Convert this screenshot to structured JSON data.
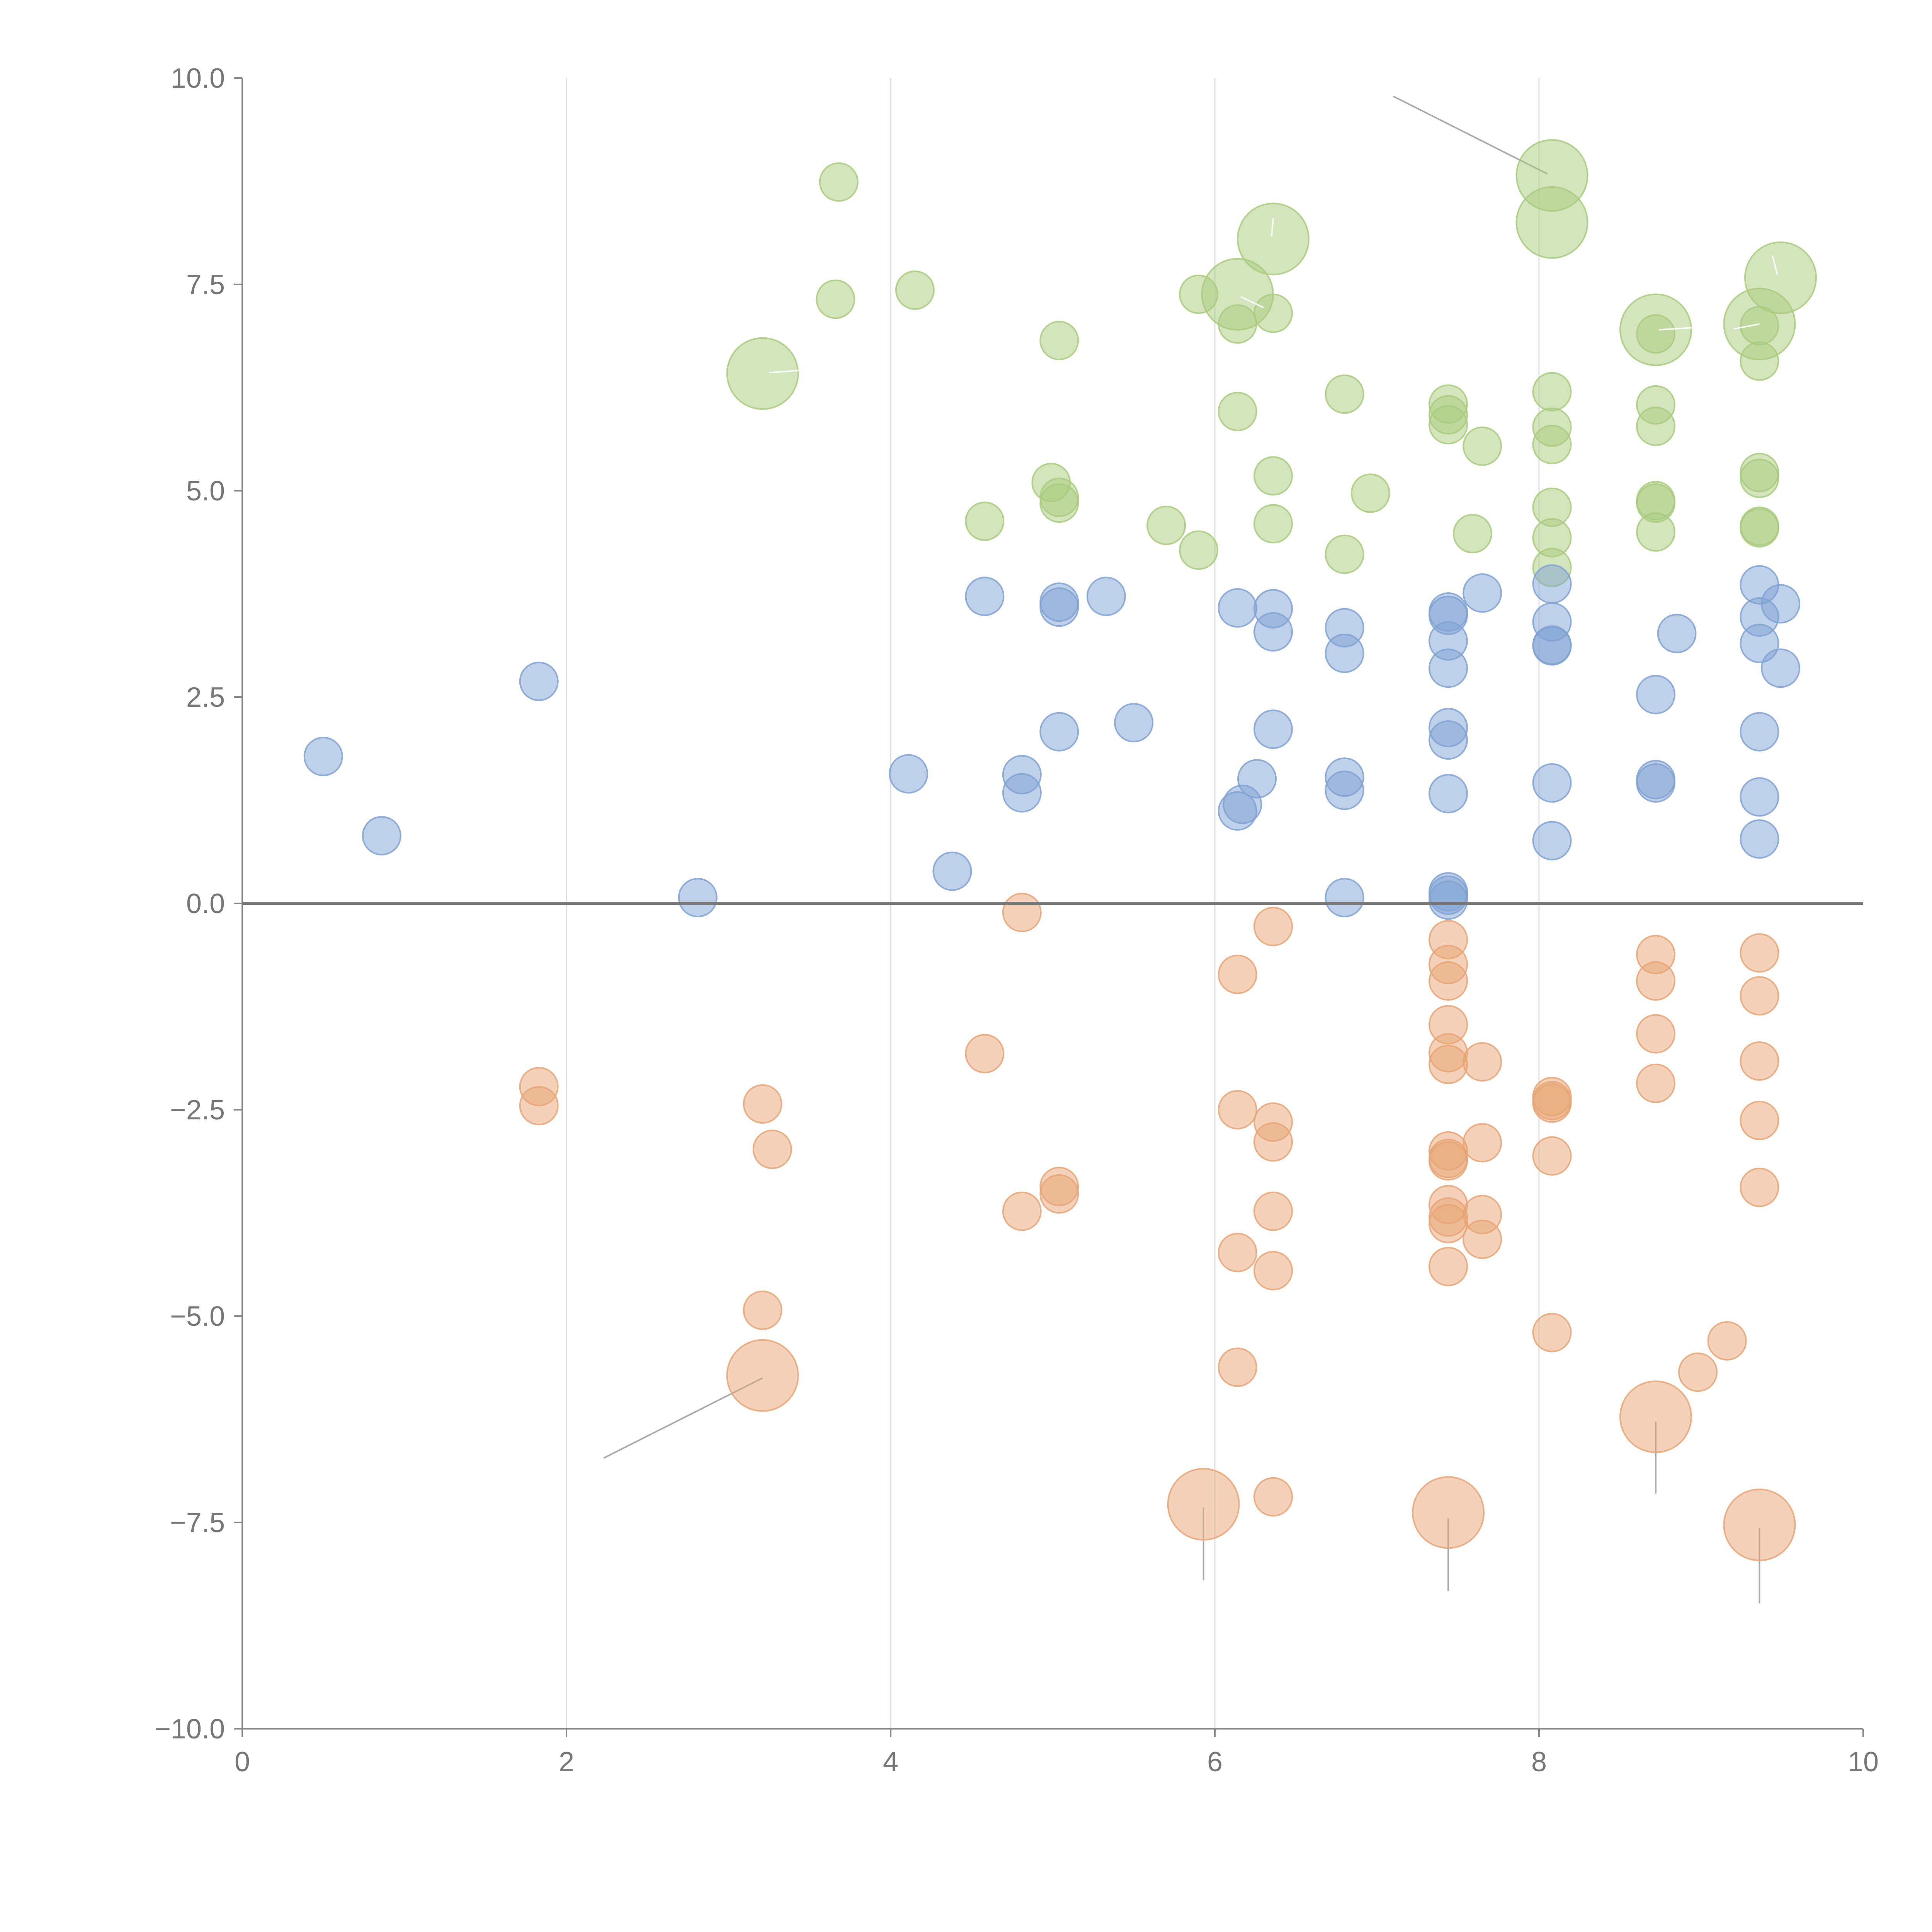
{
  "chart_data": {
    "type": "scatter",
    "title": "",
    "xlabel": "",
    "ylabel": "",
    "xlim": [
      0,
      10
    ],
    "ylim": [
      -10,
      10
    ],
    "x_ticks": [
      0,
      2,
      4,
      6,
      8,
      10
    ],
    "x_tick_labels": [
      "0",
      "2",
      "4",
      "6",
      "8",
      "10"
    ],
    "y_ticks": [
      10,
      7.5,
      5,
      2.5,
      0,
      -2.5,
      -5,
      -7.5,
      -10
    ],
    "y_tick_labels": [
      "10.0",
      "7.5",
      "5.0",
      "2.5",
      "0.0",
      "−2.5",
      "−5.0",
      "−7.5",
      "−10.0"
    ],
    "vertical_grid_at": [
      2,
      4,
      6,
      8
    ],
    "baseline_y": 0,
    "series": [
      {
        "name": "green",
        "color": "#a9cb7d",
        "size": "small",
        "points": [
          [
            3.68,
            8.74
          ],
          [
            3.66,
            7.32
          ],
          [
            4.15,
            7.43
          ],
          [
            5.04,
            6.82
          ],
          [
            5.9,
            7.38
          ],
          [
            6.14,
            7.02
          ],
          [
            6.36,
            7.15
          ],
          [
            6.14,
            5.96
          ],
          [
            6.8,
            6.17
          ],
          [
            7.44,
            6.05
          ],
          [
            7.44,
            5.8
          ],
          [
            7.44,
            5.92
          ],
          [
            7.65,
            5.54
          ],
          [
            8.08,
            6.2
          ],
          [
            8.08,
            5.77
          ],
          [
            8.08,
            5.56
          ],
          [
            8.72,
            6.04
          ],
          [
            8.72,
            5.78
          ],
          [
            8.72,
            6.9
          ],
          [
            9.36,
            7.0
          ],
          [
            9.36,
            6.57
          ],
          [
            4.99,
            5.1
          ],
          [
            5.04,
            4.92
          ],
          [
            5.04,
            4.85
          ],
          [
            4.58,
            4.63
          ],
          [
            5.7,
            4.58
          ],
          [
            5.9,
            4.28
          ],
          [
            6.36,
            5.18
          ],
          [
            6.36,
            4.6
          ],
          [
            6.8,
            4.23
          ],
          [
            6.96,
            4.97
          ],
          [
            7.59,
            4.48
          ],
          [
            8.08,
            4.8
          ],
          [
            8.08,
            4.43
          ],
          [
            8.08,
            4.07
          ],
          [
            8.72,
            4.88
          ],
          [
            8.72,
            4.85
          ],
          [
            8.72,
            4.5
          ],
          [
            9.36,
            5.22
          ],
          [
            9.36,
            5.15
          ],
          [
            9.36,
            4.57
          ],
          [
            9.36,
            4.55
          ]
        ]
      },
      {
        "name": "green",
        "color": "#a9cb7d",
        "size": "large",
        "points": [
          [
            3.21,
            6.42
          ],
          [
            6.14,
            7.38
          ],
          [
            6.36,
            8.05
          ],
          [
            8.08,
            8.82
          ],
          [
            8.08,
            8.25
          ],
          [
            8.72,
            6.95
          ],
          [
            9.36,
            7.02
          ],
          [
            9.49,
            7.58
          ]
        ]
      },
      {
        "name": "blue",
        "color": "#7fa2d4",
        "size": "small",
        "points": [
          [
            0.5,
            1.78
          ],
          [
            0.86,
            0.82
          ],
          [
            1.83,
            2.69
          ],
          [
            2.81,
            0.07
          ],
          [
            4.11,
            1.57
          ],
          [
            4.38,
            0.39
          ],
          [
            4.58,
            3.72
          ],
          [
            4.81,
            1.56
          ],
          [
            4.81,
            1.34
          ],
          [
            5.04,
            3.65
          ],
          [
            5.04,
            3.59
          ],
          [
            5.04,
            2.08
          ],
          [
            5.33,
            3.72
          ],
          [
            5.5,
            2.19
          ],
          [
            6.14,
            3.58
          ],
          [
            6.14,
            1.12
          ],
          [
            6.17,
            1.2
          ],
          [
            6.26,
            1.51
          ],
          [
            6.36,
            3.57
          ],
          [
            6.36,
            3.29
          ],
          [
            6.36,
            2.11
          ],
          [
            6.8,
            3.34
          ],
          [
            6.8,
            3.03
          ],
          [
            6.8,
            1.53
          ],
          [
            6.8,
            1.37
          ],
          [
            6.8,
            0.07
          ],
          [
            7.44,
            3.53
          ],
          [
            7.44,
            3.49
          ],
          [
            7.44,
            3.18
          ],
          [
            7.44,
            2.85
          ],
          [
            7.44,
            2.13
          ],
          [
            7.44,
            1.98
          ],
          [
            7.44,
            1.33
          ],
          [
            7.44,
            0.14
          ],
          [
            7.44,
            0.1
          ],
          [
            7.44,
            0.04
          ],
          [
            7.65,
            3.76
          ],
          [
            8.08,
            3.87
          ],
          [
            8.08,
            3.41
          ],
          [
            8.08,
            3.13
          ],
          [
            8.08,
            3.12
          ],
          [
            8.08,
            1.46
          ],
          [
            8.08,
            0.76
          ],
          [
            8.72,
            2.53
          ],
          [
            8.72,
            1.5
          ],
          [
            8.72,
            1.46
          ],
          [
            8.85,
            3.27
          ],
          [
            9.36,
            3.86
          ],
          [
            9.36,
            3.47
          ],
          [
            9.36,
            3.15
          ],
          [
            9.36,
            2.08
          ],
          [
            9.36,
            1.29
          ],
          [
            9.36,
            0.78
          ],
          [
            9.49,
            3.63
          ],
          [
            9.49,
            2.85
          ]
        ]
      },
      {
        "name": "orange",
        "color": "#e8a574",
        "size": "small",
        "points": [
          [
            1.83,
            -2.22
          ],
          [
            1.83,
            -2.45
          ],
          [
            3.21,
            -2.43
          ],
          [
            3.27,
            -2.98
          ],
          [
            3.21,
            -4.93
          ],
          [
            4.58,
            -1.82
          ],
          [
            4.81,
            -0.11
          ],
          [
            4.81,
            -3.73
          ],
          [
            5.04,
            -3.43
          ],
          [
            5.04,
            -3.52
          ],
          [
            6.14,
            -0.86
          ],
          [
            6.14,
            -2.5
          ],
          [
            6.14,
            -4.23
          ],
          [
            6.14,
            -5.62
          ],
          [
            6.36,
            -0.28
          ],
          [
            6.36,
            -2.65
          ],
          [
            6.36,
            -2.89
          ],
          [
            6.36,
            -3.73
          ],
          [
            6.36,
            -4.45
          ],
          [
            6.36,
            -7.19
          ],
          [
            7.44,
            -0.44
          ],
          [
            7.44,
            -0.74
          ],
          [
            7.44,
            -0.94
          ],
          [
            7.44,
            -1.47
          ],
          [
            7.44,
            -1.81
          ],
          [
            7.44,
            -1.95
          ],
          [
            7.44,
            -3.0
          ],
          [
            7.44,
            -3.09
          ],
          [
            7.44,
            -3.12
          ],
          [
            7.44,
            -3.65
          ],
          [
            7.44,
            -3.8
          ],
          [
            7.44,
            -3.88
          ],
          [
            7.44,
            -4.4
          ],
          [
            7.65,
            -1.92
          ],
          [
            7.65,
            -2.9
          ],
          [
            7.65,
            -3.77
          ],
          [
            7.65,
            -4.07
          ],
          [
            8.08,
            -2.34
          ],
          [
            8.08,
            -2.39
          ],
          [
            8.08,
            -2.42
          ],
          [
            8.08,
            -3.06
          ],
          [
            8.08,
            -5.2
          ],
          [
            8.72,
            -0.62
          ],
          [
            8.72,
            -0.94
          ],
          [
            8.72,
            -1.58
          ],
          [
            8.72,
            -2.18
          ],
          [
            8.98,
            -5.68
          ],
          [
            9.16,
            -5.3
          ],
          [
            9.36,
            -0.6
          ],
          [
            9.36,
            -1.12
          ],
          [
            9.36,
            -1.91
          ],
          [
            9.36,
            -2.63
          ],
          [
            9.36,
            -3.44
          ]
        ]
      },
      {
        "name": "orange",
        "color": "#e8a574",
        "size": "large",
        "points": [
          [
            3.21,
            -5.72
          ],
          [
            5.93,
            -7.28
          ],
          [
            7.44,
            -7.38
          ],
          [
            8.72,
            -6.22
          ],
          [
            9.36,
            -7.53
          ]
        ]
      }
    ],
    "callouts": [
      {
        "from": [
          3.21,
          -5.75
        ],
        "to": [
          2.23,
          -6.72
        ]
      },
      {
        "from": [
          5.93,
          -7.32
        ],
        "to": [
          5.93,
          -8.2
        ]
      },
      {
        "from": [
          7.44,
          -7.45
        ],
        "to": [
          7.44,
          -8.33
        ]
      },
      {
        "from": [
          8.72,
          -6.28
        ],
        "to": [
          8.72,
          -7.15
        ]
      },
      {
        "from": [
          9.36,
          -7.57
        ],
        "to": [
          9.36,
          -8.48
        ]
      },
      {
        "from": [
          8.05,
          8.84
        ],
        "to": [
          7.1,
          9.78
        ]
      }
    ],
    "inner_marks": [
      {
        "from": [
          3.25,
          6.43
        ],
        "to": [
          3.45,
          6.46
        ]
      },
      {
        "from": [
          6.35,
          8.08
        ],
        "to": [
          6.36,
          8.3
        ]
      },
      {
        "from": [
          6.16,
          7.35
        ],
        "to": [
          6.3,
          7.22
        ]
      },
      {
        "from": [
          8.74,
          6.95
        ],
        "to": [
          8.98,
          6.98
        ]
      },
      {
        "from": [
          9.36,
          7.02
        ],
        "to": [
          9.2,
          6.96
        ]
      },
      {
        "from": [
          9.47,
          7.62
        ],
        "to": [
          9.44,
          7.85
        ]
      }
    ]
  }
}
